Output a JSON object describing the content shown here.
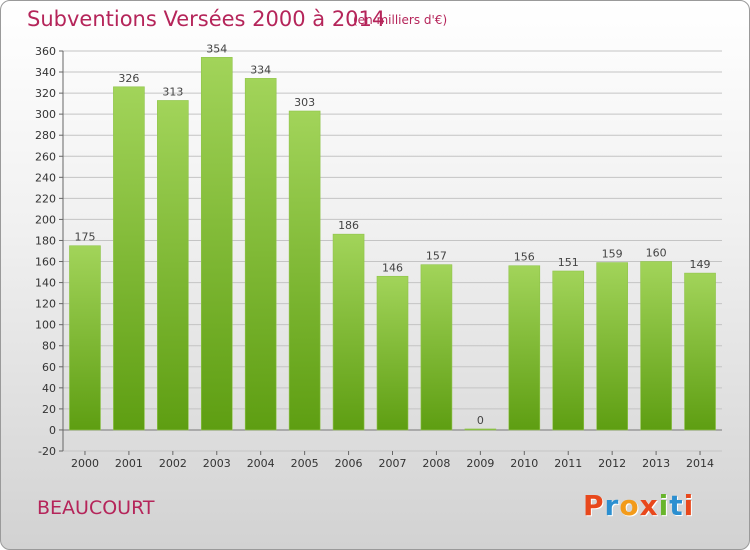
{
  "header": {
    "title": "Subventions Versées 2000 à 2014",
    "subtitle": "(en milliers d'€)"
  },
  "footer": {
    "town": "BEAUCOURT",
    "logo": {
      "text": "Proxiti",
      "letters": [
        "P",
        "r",
        "o",
        "x",
        "i",
        "t",
        "i"
      ],
      "colors": [
        "#e8481c",
        "#2c8fd0",
        "#f39b1a",
        "#e8481c",
        "#68b52c",
        "#2c8fd0",
        "#e8481c"
      ]
    }
  },
  "colors": {
    "bar_top": "#a2d45a",
    "bar_bottom": "#5e9e12",
    "title": "#b5255a",
    "grid": "#c4c4c4"
  },
  "chart_data": {
    "type": "bar",
    "title": "Subventions Versées 2000 à 2014",
    "subtitle": "(en milliers d'€)",
    "categories": [
      "2000",
      "2001",
      "2002",
      "2003",
      "2004",
      "2005",
      "2006",
      "2007",
      "2008",
      "2009",
      "2010",
      "2011",
      "2012",
      "2013",
      "2014"
    ],
    "values": [
      175,
      326,
      313,
      354,
      334,
      303,
      186,
      146,
      157,
      0,
      156,
      151,
      159,
      160,
      149
    ],
    "ylim": [
      -20,
      360
    ],
    "yticks": [
      -20,
      0,
      20,
      40,
      60,
      80,
      100,
      120,
      140,
      160,
      180,
      200,
      220,
      240,
      260,
      280,
      300,
      320,
      340,
      360
    ],
    "grid": true,
    "xlabel": "",
    "ylabel": ""
  }
}
